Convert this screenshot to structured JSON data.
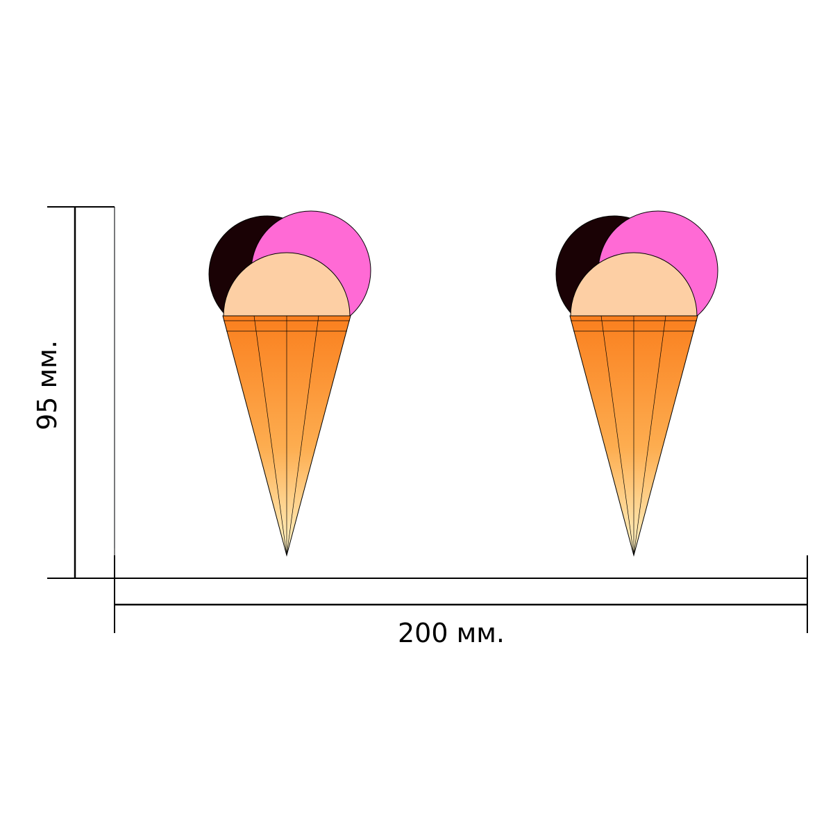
{
  "dimensions": {
    "height_label": "95 мм.",
    "width_label": "200 мм."
  },
  "cones": [
    {
      "id": "left"
    },
    {
      "id": "right"
    }
  ],
  "colors": {
    "chocolate_scoop": "#1a0205",
    "strawberry_scoop": "#ff6ad5",
    "vanilla_scoop": "#fdcfa4",
    "cone_top": "#fa7f1e",
    "cone_mid": "#fdad50",
    "cone_tip": "#fff6c8",
    "outline": "#000000"
  }
}
